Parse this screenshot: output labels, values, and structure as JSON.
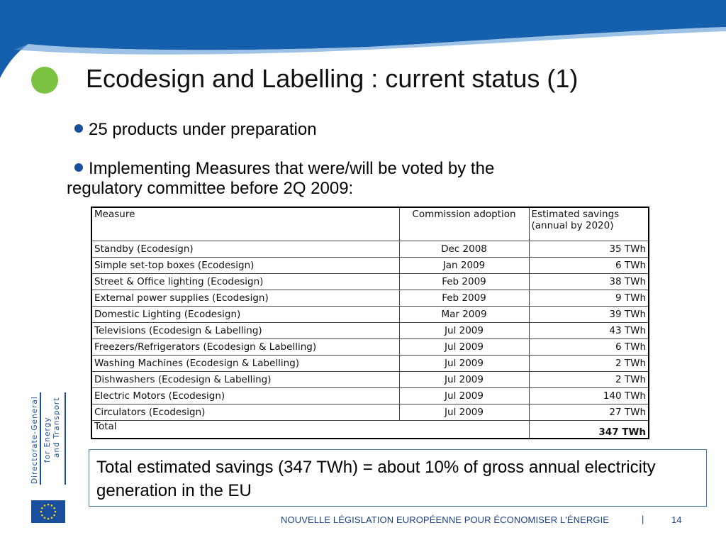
{
  "colors": {
    "header_blue": "#1560ac",
    "title_bullet_green": "#7cc242",
    "bullet_blue": "#1a4fa0",
    "footer_blue": "#1a3f86",
    "box_border": "#4a78b4"
  },
  "slide": {
    "title": "Ecodesign and Labelling : current status (1)",
    "bullets": [
      "25 products under preparation",
      "Implementing Measures that were/will be voted by the"
    ],
    "bullet_continuation": "regulatory committee before 2Q 2009:"
  },
  "table": {
    "headers": [
      "Measure",
      "Commission adoption",
      "Estimated savings (annual by 2020)"
    ],
    "rows": [
      [
        "Standby (Ecodesign)",
        "Dec 2008",
        "35 TWh"
      ],
      [
        "Simple set-top boxes (Ecodesign)",
        "Jan 2009",
        "6 TWh"
      ],
      [
        "Street & Office lighting (Ecodesign)",
        "Feb 2009",
        "38 TWh"
      ],
      [
        "External power supplies (Ecodesign)",
        "Feb 2009",
        "9 TWh"
      ],
      [
        "Domestic Lighting (Ecodesign)",
        "Mar 2009",
        "39 TWh"
      ],
      [
        "Televisions (Ecodesign & Labelling)",
        "Jul 2009",
        "43 TWh"
      ],
      [
        "Freezers/Refrigerators (Ecodesign & Labelling)",
        "Jul 2009",
        "6 TWh"
      ],
      [
        "Washing Machines (Ecodesign & Labelling)",
        "Jul 2009",
        "2 TWh"
      ],
      [
        "Dishwashers (Ecodesign & Labelling)",
        "Jul 2009",
        "2 TWh"
      ],
      [
        "Electric Motors (Ecodesign)",
        "Jul 2009",
        "140 TWh"
      ],
      [
        "Circulators (Ecodesign)",
        "Jul 2009",
        "27 TWh"
      ]
    ],
    "total_label": "Total",
    "total_value": "347 TWh"
  },
  "summary": "Total estimated savings (347 TWh) = about 10% of gross annual electricity generation in the EU",
  "logo": {
    "line1": "Directorate-General",
    "line2": "for Energy",
    "line3": "and Transport"
  },
  "footer": {
    "text": "NOUVELLE LÉGISLATION EUROPÉENNE POUR ÉCONOMISER L'ÉNERGIE",
    "separator": "|",
    "page_number": "14"
  }
}
